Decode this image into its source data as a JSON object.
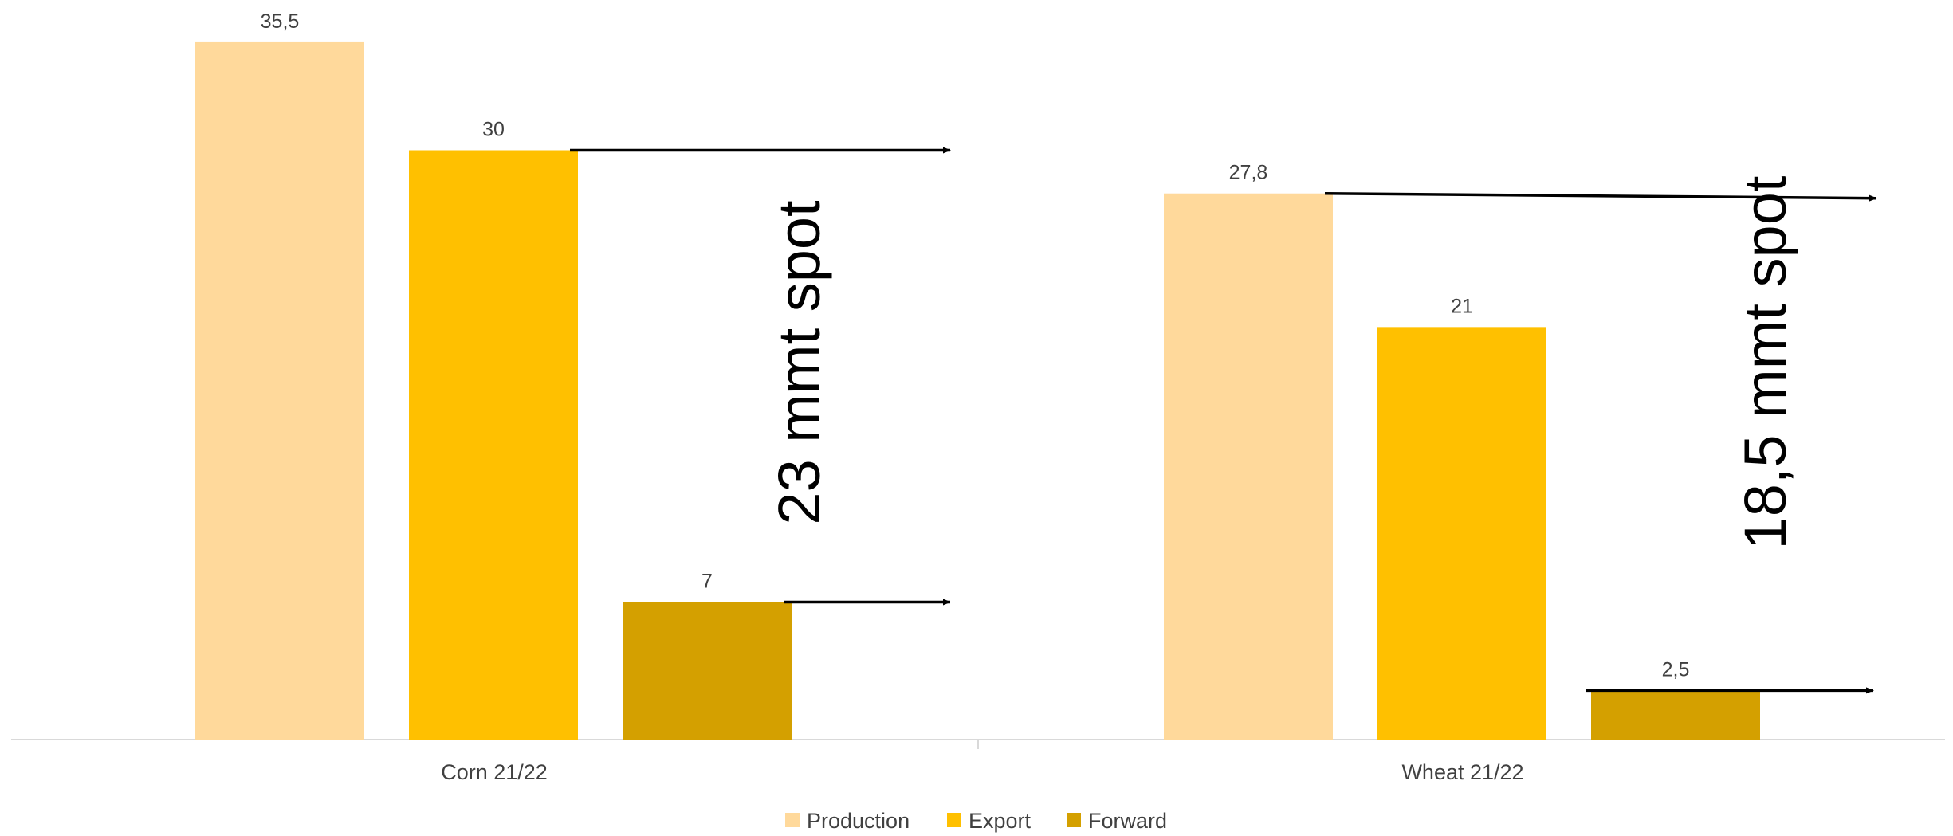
{
  "chart_data": {
    "type": "bar",
    "categories": [
      "Corn 21/22",
      "Wheat 21/22"
    ],
    "series": [
      {
        "name": "Production",
        "values": [
          35.5,
          27.8
        ],
        "labels": [
          "35,5",
          "27,8"
        ],
        "color": "#FFD99B"
      },
      {
        "name": "Export",
        "values": [
          30,
          21
        ],
        "labels": [
          "30",
          "21"
        ],
        "color": "#FFC000"
      },
      {
        "name": "Forward",
        "values": [
          7,
          2.5
        ],
        "labels": [
          "7",
          "2,5"
        ],
        "color": "#D4A000"
      }
    ],
    "ylim": [
      0,
      36
    ],
    "grid": false,
    "legend_position": "bottom",
    "annotations": [
      {
        "category": "Corn 21/22",
        "text": "23 mmt spot"
      },
      {
        "category": "Wheat 21/22",
        "text": "18,5 mmt spot"
      }
    ]
  }
}
